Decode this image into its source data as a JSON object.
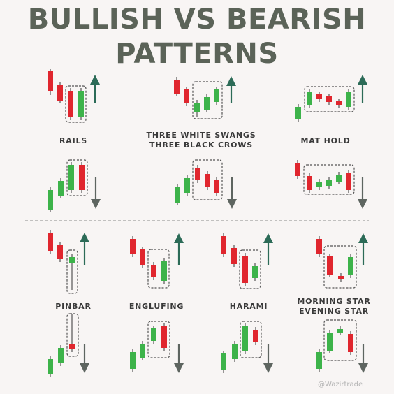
{
  "title": {
    "line1": "BULLISH VS BEARISH",
    "line2": "PATTERNS"
  },
  "colors": {
    "bull": "#3db34a",
    "bear": "#e0262e",
    "up_arrow": "#2c6b57",
    "down_arrow": "#5e6560",
    "title": "#5b6358",
    "box": "#555555"
  },
  "patterns": [
    {
      "name": "rails",
      "lines": [
        "RAILS"
      ]
    },
    {
      "name": "three-white-swangs",
      "lines": [
        "THREE WHITE SWANGS",
        "THREE BLACK CROWS"
      ]
    },
    {
      "name": "mat-hold",
      "lines": [
        "MAT HOLD"
      ]
    },
    {
      "name": "pinbar",
      "lines": [
        "PINBAR"
      ]
    },
    {
      "name": "englufing",
      "lines": [
        "ENGLUFING"
      ]
    },
    {
      "name": "harami",
      "lines": [
        "HARAMI"
      ]
    },
    {
      "name": "morning-star",
      "lines": [
        "MORNING STAR",
        "EVENING STAR"
      ]
    }
  ],
  "watermark": "@Wazirtrade"
}
